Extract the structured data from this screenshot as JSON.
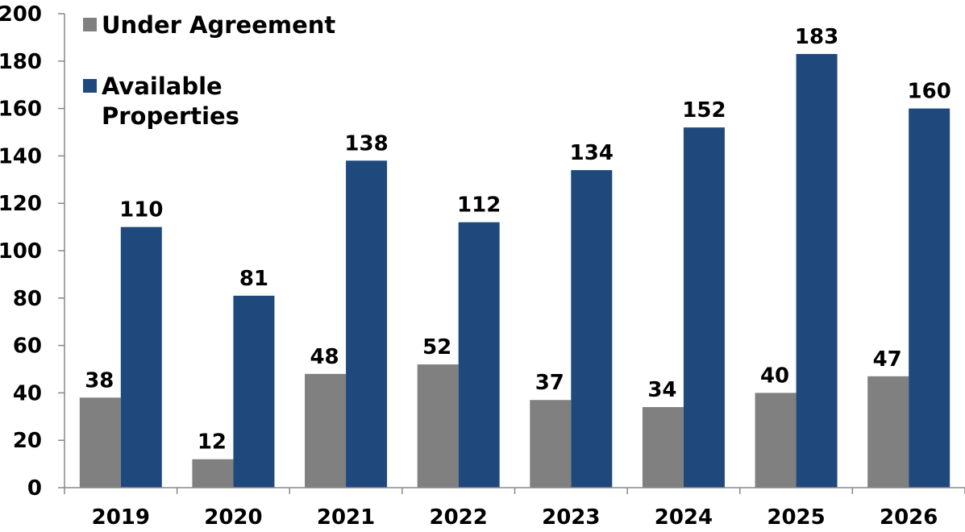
{
  "chart_data": {
    "type": "bar",
    "categories": [
      "2019",
      "2020",
      "2021",
      "2022",
      "2023",
      "2024",
      "2025",
      "2026"
    ],
    "series": [
      {
        "name": "Under Agreement",
        "values": [
          38,
          12,
          48,
          52,
          37,
          34,
          40,
          47
        ],
        "color": "#808080"
      },
      {
        "name": "Available Properties",
        "name_lines": [
          "Available",
          "Properties"
        ],
        "values": [
          110,
          81,
          138,
          112,
          134,
          152,
          183,
          160
        ],
        "color": "#1f497d"
      }
    ],
    "ylim": [
      0,
      200
    ],
    "yticks": [
      "0",
      "20",
      "40",
      "60",
      "80",
      "100",
      "120",
      "140",
      "160",
      "180",
      "200"
    ],
    "grid": false,
    "legend": "top-left",
    "data_labels": true
  }
}
